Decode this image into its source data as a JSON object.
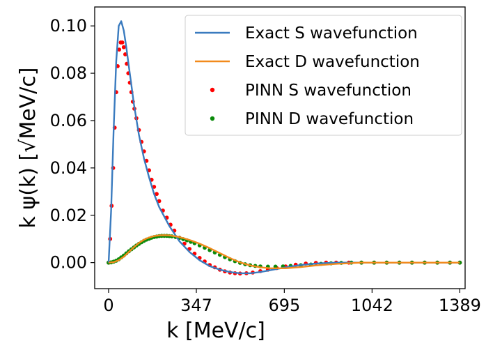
{
  "chart_data": {
    "type": "line",
    "title": "",
    "xlabel": "k [MeV/c]",
    "ylabel": "k ψ(k)  [√MeV/c]",
    "xlim": [
      -55,
      1410
    ],
    "ylim": [
      -0.011,
      0.108
    ],
    "xticks": [
      0,
      347,
      695,
      1042,
      1389
    ],
    "xtick_labels": [
      "0",
      "347",
      "695",
      "1042",
      "1389"
    ],
    "yticks": [
      0.0,
      0.02,
      0.04,
      0.06,
      0.08,
      0.1
    ],
    "ytick_labels": [
      "0.00",
      "0.02",
      "0.04",
      "0.06",
      "0.08",
      "0.10"
    ],
    "grid": false,
    "legend_position": "top-right",
    "series": [
      {
        "name": "Exact S wavefunction",
        "kind": "line",
        "color": "#3a7bbf",
        "x": [
          0,
          10,
          20,
          30,
          40,
          50,
          60,
          70,
          80,
          90,
          100,
          120,
          140,
          160,
          180,
          200,
          240,
          280,
          320,
          360,
          400,
          440,
          480,
          520,
          560,
          600,
          650,
          700,
          760,
          820,
          900,
          1000,
          1100,
          1200,
          1300,
          1389
        ],
        "values": [
          0.0,
          0.022,
          0.056,
          0.085,
          0.1,
          0.102,
          0.098,
          0.091,
          0.083,
          0.075,
          0.067,
          0.054,
          0.044,
          0.036,
          0.029,
          0.0235,
          0.0155,
          0.009,
          0.0045,
          0.001,
          -0.0015,
          -0.003,
          -0.004,
          -0.0045,
          -0.0045,
          -0.004,
          -0.003,
          -0.002,
          -0.001,
          -0.0004,
          0.0,
          0.0,
          0.0,
          0.0,
          0.0,
          0.0
        ]
      },
      {
        "name": "Exact D wavefunction",
        "kind": "line",
        "color": "#f28a1c",
        "x": [
          0,
          20,
          40,
          60,
          80,
          100,
          120,
          140,
          160,
          180,
          200,
          220,
          240,
          270,
          300,
          330,
          360,
          400,
          440,
          480,
          520,
          560,
          600,
          640,
          700,
          760,
          820,
          900,
          1000,
          1100,
          1200,
          1300,
          1389
        ],
        "values": [
          0.0,
          0.0002,
          0.001,
          0.0025,
          0.0045,
          0.0065,
          0.0083,
          0.0097,
          0.0106,
          0.0112,
          0.0115,
          0.0116,
          0.0115,
          0.011,
          0.0102,
          0.0092,
          0.008,
          0.0061,
          0.004,
          0.0019,
          0.0001,
          -0.0012,
          -0.002,
          -0.0024,
          -0.0024,
          -0.0019,
          -0.0012,
          -0.0005,
          0.0,
          0.0,
          0.0,
          0.0,
          0.0
        ]
      },
      {
        "name": "PINN S wavefunction",
        "kind": "scatter",
        "color": "#ff0000",
        "x": [
          0,
          6,
          12,
          18,
          24,
          30,
          36,
          42,
          48,
          54,
          60,
          66,
          72,
          78,
          84,
          90,
          96,
          102,
          110,
          120,
          130,
          140,
          150,
          160,
          170,
          180,
          190,
          200,
          215,
          230,
          245,
          260,
          280,
          300,
          320,
          340,
          360,
          380,
          400,
          420,
          440,
          460,
          480,
          500,
          520,
          545,
          570,
          600,
          630,
          665,
          700,
          740,
          780,
          820,
          860,
          900,
          950,
          1000,
          1050,
          1100,
          1150,
          1200,
          1250,
          1300,
          1350,
          1389
        ],
        "values": [
          0.0,
          0.01,
          0.024,
          0.04,
          0.057,
          0.072,
          0.083,
          0.09,
          0.093,
          0.093,
          0.091,
          0.088,
          0.084,
          0.08,
          0.076,
          0.072,
          0.068,
          0.065,
          0.061,
          0.056,
          0.051,
          0.047,
          0.043,
          0.039,
          0.035,
          0.032,
          0.029,
          0.026,
          0.022,
          0.019,
          0.016,
          0.0135,
          0.0105,
          0.008,
          0.0058,
          0.0038,
          0.002,
          0.0005,
          -0.001,
          -0.002,
          -0.003,
          -0.0037,
          -0.0042,
          -0.0045,
          -0.0046,
          -0.0045,
          -0.0042,
          -0.0036,
          -0.003,
          -0.0023,
          -0.0016,
          -0.0009,
          -0.0004,
          -0.0001,
          0.0,
          0.0,
          0.0,
          0.0,
          0.0,
          0.0,
          0.0,
          0.0,
          0.0,
          0.0,
          0.0,
          0.0
        ]
      },
      {
        "name": "PINN D wavefunction",
        "kind": "scatter",
        "color": "#0a8a0a",
        "x": [
          0,
          10,
          20,
          30,
          40,
          50,
          60,
          70,
          80,
          90,
          100,
          110,
          120,
          130,
          140,
          150,
          160,
          170,
          180,
          190,
          200,
          210,
          220,
          230,
          240,
          250,
          265,
          280,
          295,
          310,
          325,
          340,
          360,
          380,
          400,
          420,
          440,
          460,
          480,
          500,
          520,
          540,
          560,
          580,
          600,
          630,
          660,
          690,
          720,
          760,
          800,
          840,
          880,
          920,
          960,
          1000,
          1050,
          1100,
          1150,
          1200,
          1250,
          1300,
          1350,
          1389
        ],
        "values": [
          0.0,
          0.0001,
          0.0004,
          0.0008,
          0.0014,
          0.0022,
          0.003,
          0.0039,
          0.0048,
          0.0056,
          0.0064,
          0.0072,
          0.0079,
          0.0086,
          0.0092,
          0.0097,
          0.0101,
          0.0105,
          0.0108,
          0.011,
          0.0112,
          0.0113,
          0.0113,
          0.0113,
          0.0112,
          0.0111,
          0.0108,
          0.0104,
          0.0099,
          0.0094,
          0.0088,
          0.0082,
          0.0073,
          0.0063,
          0.0053,
          0.0043,
          0.0033,
          0.0023,
          0.0014,
          0.0006,
          -0.0001,
          -0.0007,
          -0.0011,
          -0.0014,
          -0.0016,
          -0.0017,
          -0.0017,
          -0.0016,
          -0.0014,
          -0.0011,
          -0.0008,
          -0.0005,
          -0.0003,
          -0.0001,
          0.0,
          0.0,
          0.0,
          0.0,
          0.0,
          0.0,
          0.0,
          0.0,
          0.0,
          0.0
        ]
      }
    ]
  }
}
